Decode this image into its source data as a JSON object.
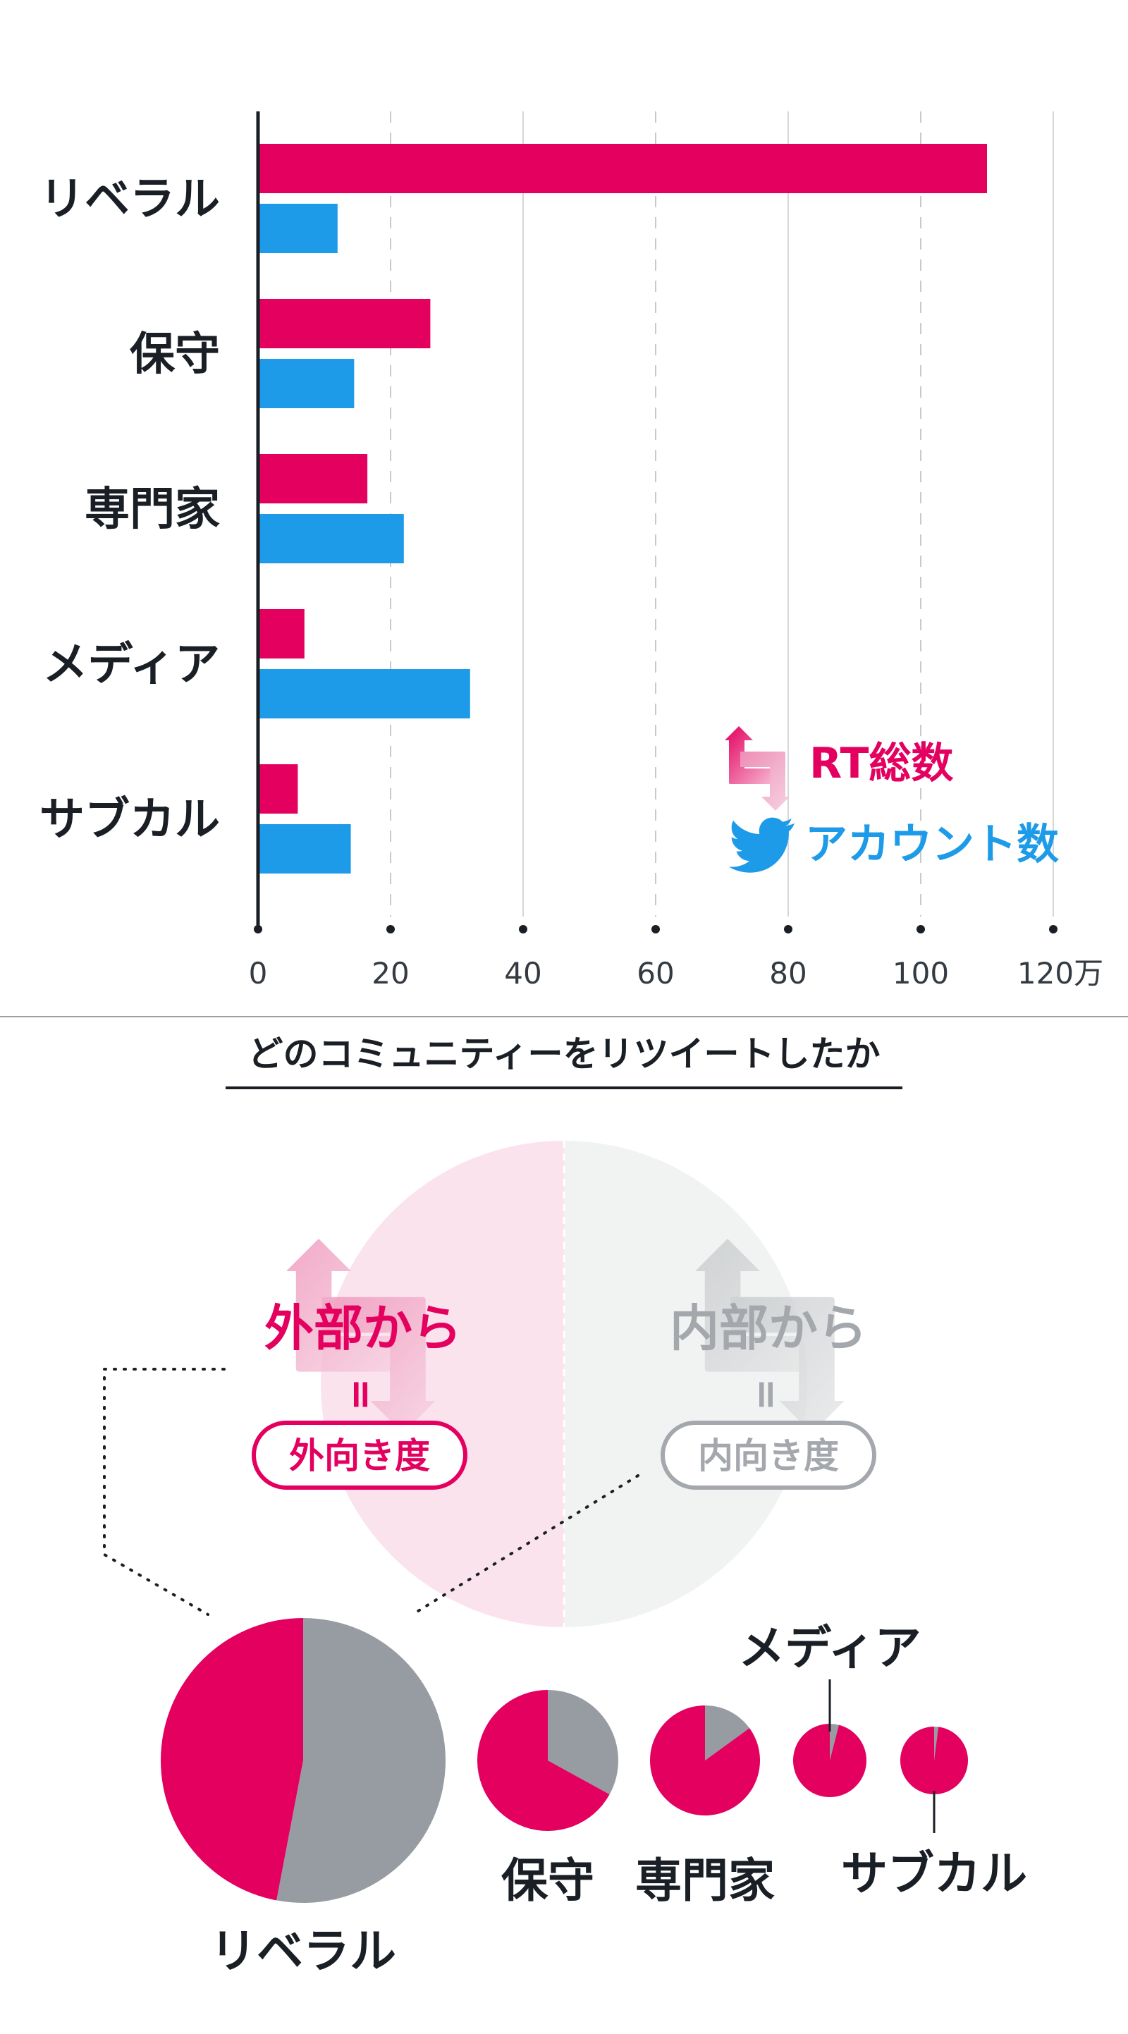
{
  "chart_data": [
    {
      "type": "bar",
      "categories": [
        "リベラル",
        "保守",
        "専門家",
        "メディア",
        "サブカル"
      ],
      "series": [
        {
          "name": "RT総数",
          "color": "#e3005f",
          "values": [
            110,
            26,
            16.5,
            7,
            6
          ]
        },
        {
          "name": "アカウント数",
          "color": "#1e9be8",
          "values": [
            12,
            14.5,
            22,
            32,
            14
          ]
        }
      ],
      "xlim": [
        0,
        120
      ],
      "xticks": [
        "0",
        "20",
        "40",
        "60",
        "80",
        "100",
        "120万"
      ],
      "xtick_values": [
        0,
        20,
        40,
        60,
        80,
        100,
        120
      ],
      "orientation": "horizontal",
      "grid": true,
      "legend_position": "bottom-right"
    },
    {
      "type": "pie",
      "title": "どのコミュニティーをリツイートしたか",
      "series_labels": [
        "外部から",
        "内部から"
      ],
      "colors": [
        "#e3005f",
        "#969ca2"
      ],
      "pies": [
        {
          "label": "リベラル",
          "outside_share": 0.47
        },
        {
          "label": "保守",
          "outside_share": 0.67
        },
        {
          "label": "専門家",
          "outside_share": 0.85
        },
        {
          "label": "メディア",
          "outside_share": 0.96
        },
        {
          "label": "サブカル",
          "outside_share": 0.98
        }
      ]
    }
  ],
  "concept": {
    "outside": {
      "title": "外部から",
      "eq": "=",
      "badge": "外向き度",
      "color": "#e3005f"
    },
    "inside": {
      "title": "内部から",
      "eq": "=",
      "badge": "内向き度",
      "color": "#a4a8ad"
    }
  },
  "icons": {
    "retweet": "retweet-icon",
    "twitter": "twitter-bird-icon"
  }
}
